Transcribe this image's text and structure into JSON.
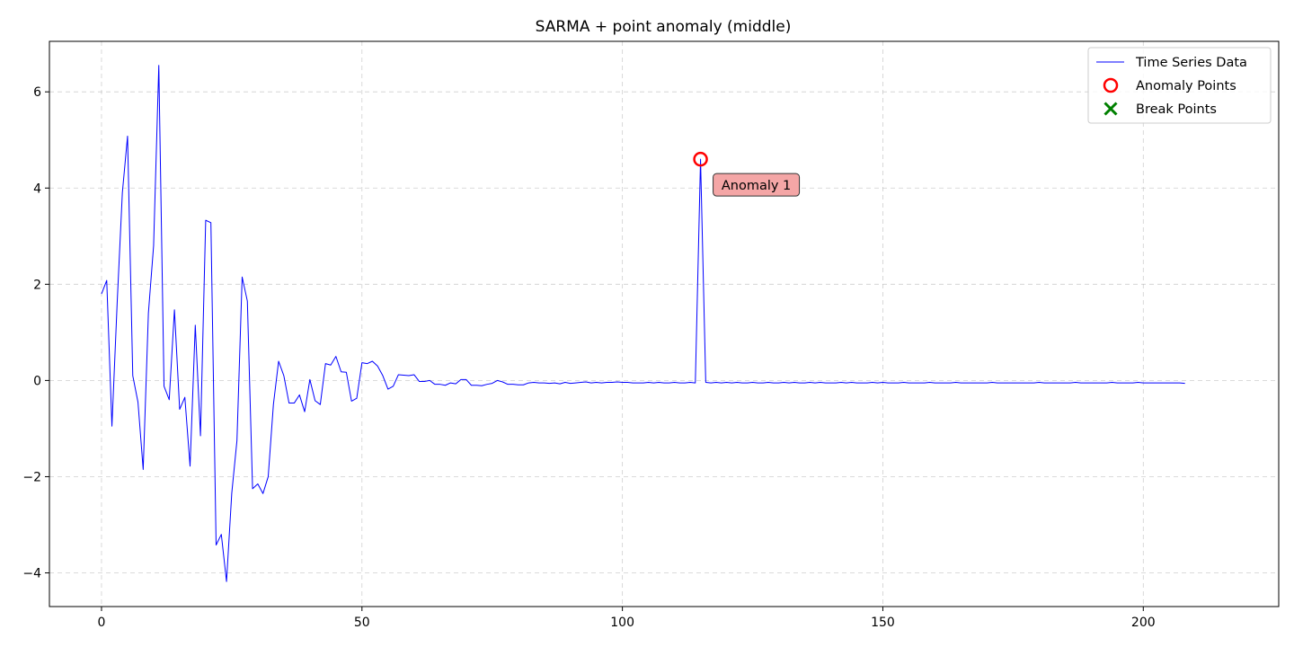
{
  "chart_data": {
    "type": "line",
    "title": "SARMA + point anomaly (middle)",
    "xlabel": "",
    "ylabel": "",
    "xlim": [
      -10,
      226
    ],
    "ylim": [
      -4.7,
      7.05
    ],
    "xticks": [
      0,
      50,
      100,
      150,
      200
    ],
    "yticks": [
      -4,
      -2,
      0,
      2,
      4,
      6
    ],
    "grid": true,
    "legend": {
      "placement": "top-right",
      "entries": [
        "Time Series Data",
        "Anomaly Points",
        "Break Points"
      ]
    },
    "series": [
      {
        "name": "Time Series Data",
        "color": "#0000ff",
        "x_start": 0,
        "x_step": 1,
        "values": [
          1.8,
          2.08,
          -0.95,
          1.6,
          3.9,
          5.08,
          0.1,
          -0.45,
          -1.85,
          1.4,
          2.8,
          6.55,
          -0.12,
          -0.4,
          1.47,
          -0.6,
          -0.35,
          -1.78,
          1.15,
          -1.15,
          3.33,
          3.28,
          -3.42,
          -3.2,
          -4.18,
          -2.35,
          -1.25,
          2.15,
          1.65,
          -2.25,
          -2.15,
          -2.35,
          -2.0,
          -0.5,
          0.4,
          0.1,
          -0.47,
          -0.47,
          -0.3,
          -0.65,
          0.02,
          -0.42,
          -0.5,
          0.35,
          0.32,
          0.5,
          0.18,
          0.17,
          -0.43,
          -0.37,
          0.37,
          0.35,
          0.4,
          0.3,
          0.1,
          -0.18,
          -0.12,
          0.12,
          0.11,
          0.1,
          0.12,
          -0.02,
          -0.02,
          0.0,
          -0.08,
          -0.08,
          -0.1,
          -0.05,
          -0.07,
          0.02,
          0.02,
          -0.1,
          -0.1,
          -0.11,
          -0.08,
          -0.06,
          0.0,
          -0.03,
          -0.08,
          -0.08,
          -0.09,
          -0.09,
          -0.05,
          -0.04,
          -0.05,
          -0.05,
          -0.06,
          -0.05,
          -0.07,
          -0.04,
          -0.06,
          -0.05,
          -0.04,
          -0.03,
          -0.05,
          -0.04,
          -0.05,
          -0.04,
          -0.04,
          -0.03,
          -0.04,
          -0.04,
          -0.05,
          -0.05,
          -0.05,
          -0.04,
          -0.05,
          -0.04,
          -0.05,
          -0.05,
          -0.04,
          -0.05,
          -0.05,
          -0.04,
          -0.05,
          4.6,
          -0.04,
          -0.05,
          -0.04,
          -0.05,
          -0.04,
          -0.05,
          -0.04,
          -0.05,
          -0.05,
          -0.04,
          -0.05,
          -0.05,
          -0.04,
          -0.05,
          -0.05,
          -0.04,
          -0.05,
          -0.04,
          -0.05,
          -0.05,
          -0.04,
          -0.05,
          -0.04,
          -0.05,
          -0.05,
          -0.05,
          -0.04,
          -0.05,
          -0.04,
          -0.05,
          -0.05,
          -0.05,
          -0.04,
          -0.05,
          -0.04,
          -0.05,
          -0.05,
          -0.05,
          -0.04,
          -0.05,
          -0.05,
          -0.05,
          -0.05,
          -0.04,
          -0.05,
          -0.05,
          -0.05,
          -0.05,
          -0.04,
          -0.05,
          -0.05,
          -0.05,
          -0.05,
          -0.05,
          -0.05,
          -0.04,
          -0.05,
          -0.05,
          -0.05,
          -0.05,
          -0.05,
          -0.05,
          -0.05,
          -0.05,
          -0.04,
          -0.05,
          -0.05,
          -0.05,
          -0.05,
          -0.05,
          -0.05,
          -0.04,
          -0.05,
          -0.05,
          -0.05,
          -0.05,
          -0.05,
          -0.05,
          -0.04,
          -0.05,
          -0.05,
          -0.05,
          -0.05,
          -0.04,
          -0.05,
          -0.05,
          -0.05,
          -0.05,
          -0.05,
          -0.05,
          -0.05,
          -0.05,
          -0.06
        ]
      }
    ],
    "anomaly_points": {
      "name": "Anomaly Points",
      "color": "#ff0000",
      "points": [
        {
          "x": 115,
          "y": 4.6,
          "label": "Anomaly 1"
        }
      ]
    },
    "break_points": {
      "name": "Break Points",
      "color": "#008000",
      "points": []
    },
    "annotation_box_color": "#f4a6a6"
  }
}
